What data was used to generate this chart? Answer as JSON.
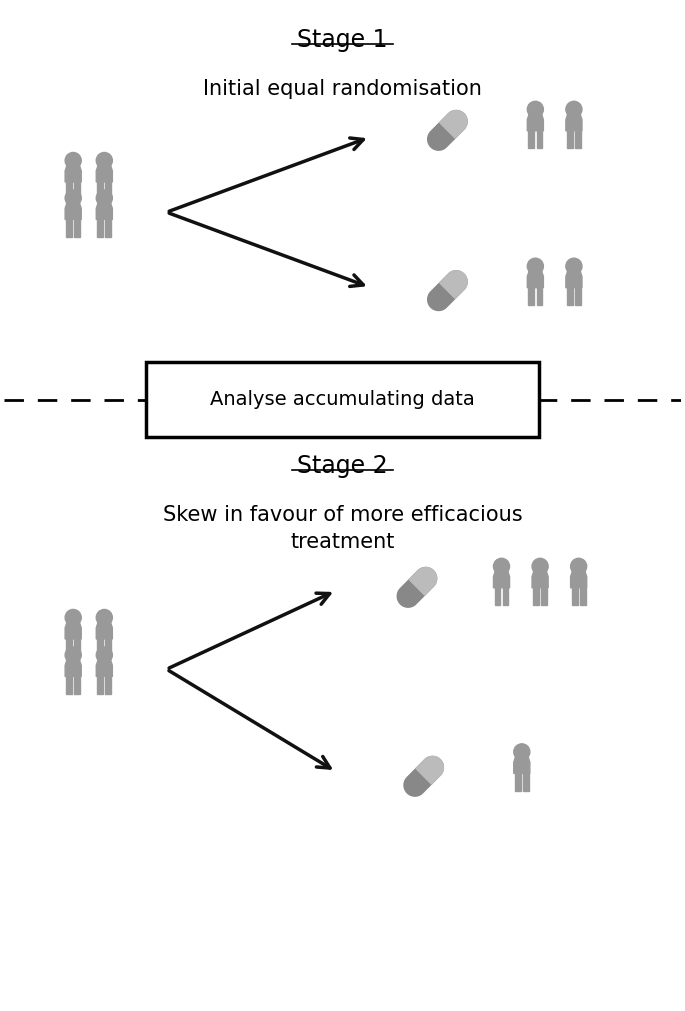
{
  "title_stage1": "Stage 1",
  "subtitle_stage1": "Initial equal randomisation",
  "title_stage2": "Stage 2",
  "subtitle_stage2": "Skew in favour of more efficacious\ntreatment",
  "middle_box_text": "Analyse accumulating data",
  "person_color": "#999999",
  "pill_color_dark": "#888888",
  "pill_color_light": "#bbbbbb",
  "arrow_color": "#111111",
  "bg_color": "#ffffff",
  "figsize": [
    6.85,
    10.11
  ],
  "dpi": 100
}
